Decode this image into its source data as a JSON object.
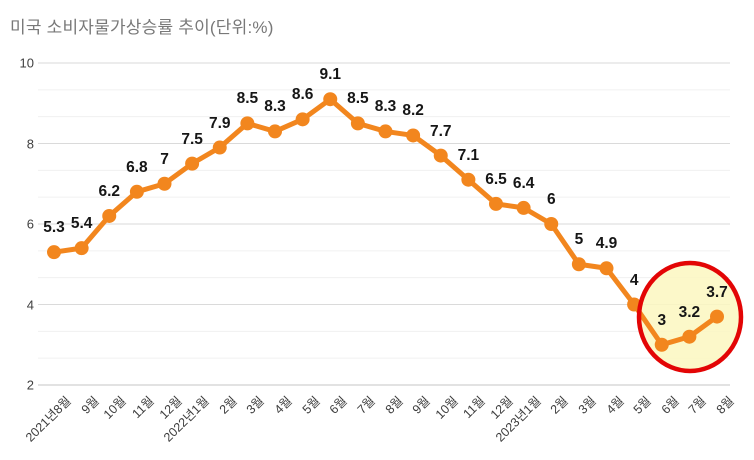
{
  "title": "미국 소비자물가상승률 추이(단위:%)",
  "chart_data": {
    "type": "line",
    "title": "미국 소비자물가상승률 추이(단위:%)",
    "categories": [
      "2021년8월",
      "9월",
      "10월",
      "11월",
      "12월",
      "2022년1월",
      "2월",
      "3월",
      "4월",
      "5월",
      "6월",
      "7월",
      "8월",
      "9월",
      "10월",
      "11월",
      "12월",
      "2023년1월",
      "2월",
      "3월",
      "4월",
      "5월",
      "6월",
      "7월",
      "8월"
    ],
    "values": [
      5.3,
      5.4,
      6.2,
      6.8,
      7,
      7.5,
      7.9,
      8.5,
      8.3,
      8.6,
      9.1,
      8.5,
      8.3,
      8.2,
      7.7,
      7.1,
      6.5,
      6.4,
      6,
      5,
      4.9,
      4,
      3,
      3.2,
      3.7
    ],
    "ylim": [
      2,
      10
    ],
    "yticks": [
      2,
      4,
      6,
      8,
      10
    ],
    "grid": "on",
    "legend": "none",
    "xlabel": "",
    "ylabel": "",
    "series_color": "#F2861E",
    "data_label_color": "#161616",
    "highlight": {
      "type": "ellipse",
      "circled_categories": [
        "2023년6월",
        "2023년7월",
        "2023년8월"
      ],
      "circled_values": [
        3,
        3.2,
        3.7
      ],
      "start_index": 22,
      "end_index": 24,
      "stroke_color": "#E30505",
      "fill_color": "#FBF7C0"
    }
  }
}
